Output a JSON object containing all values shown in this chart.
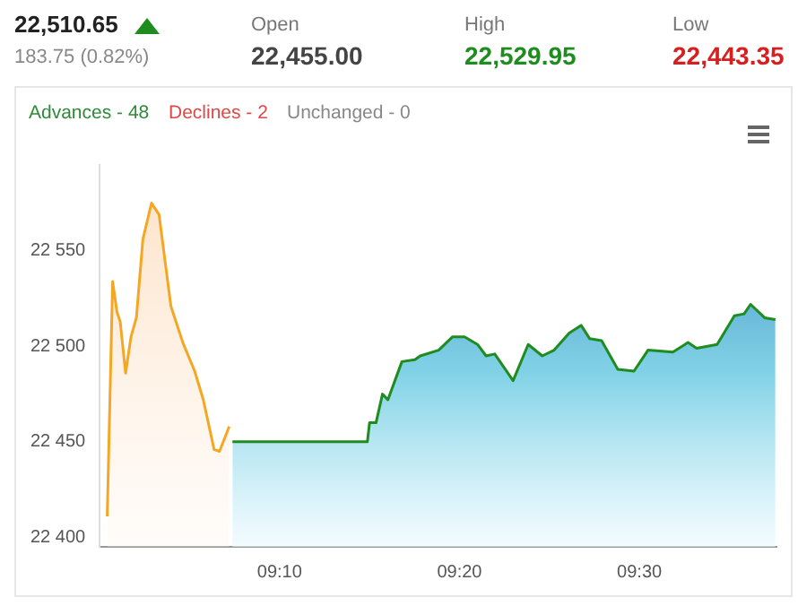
{
  "chart_data": {
    "type": "area",
    "annotations": [
      "22,510.65",
      "183.75 (0.82%)",
      "Open",
      "22,455.00",
      "High",
      "22,529.95",
      "Low",
      "22,443.35",
      "Advances - 48",
      "Declines - 2",
      "Unchanged - 0"
    ],
    "marker": "none",
    "xlim": [
      9.0,
      9.627
    ],
    "ylim": [
      22395,
      22595
    ],
    "xticks": [
      {
        "value": 9.16667,
        "label": "09:10"
      },
      {
        "value": 9.33333,
        "label": "09:20"
      },
      {
        "value": 9.5,
        "label": "09:30"
      }
    ],
    "yticks": [
      {
        "value": 22400,
        "label": "22 400"
      },
      {
        "value": 22450,
        "label": "22 450"
      },
      {
        "value": 22500,
        "label": "22 500"
      },
      {
        "value": 22550,
        "label": "22 550"
      }
    ],
    "series": [
      {
        "color": "#f5a623",
        "x": [
          9.007,
          9.012,
          9.016,
          9.019,
          9.024,
          9.029,
          9.034,
          9.04,
          9.048,
          9.055,
          9.066,
          9.077,
          9.088,
          9.096,
          9.106,
          9.111,
          9.12
        ],
        "values": [
          22411,
          22534,
          22518,
          22513,
          22486,
          22505,
          22515,
          22556,
          22575,
          22569,
          22521,
          22502,
          22487,
          22472,
          22446,
          22445,
          22458
        ]
      },
      {
        "color": "#1e8c1e",
        "x": [
          9.123,
          9.248,
          9.25,
          9.256,
          9.262,
          9.267,
          9.28,
          9.292,
          9.297,
          9.314,
          9.327,
          9.338,
          9.35,
          9.358,
          9.366,
          9.383,
          9.397,
          9.41,
          9.421,
          9.435,
          9.446,
          9.454,
          9.465,
          9.48,
          9.495,
          9.508,
          9.531,
          9.545,
          9.553,
          9.572,
          9.588,
          9.597,
          9.603,
          9.616,
          9.626
        ],
        "values": [
          22450,
          22450,
          22460,
          22460,
          22475,
          22472,
          22492,
          22493,
          22495,
          22498,
          22505,
          22505,
          22501,
          22495,
          22496,
          22482,
          22501,
          22495,
          22498,
          22507,
          22511,
          22504,
          22503,
          22488,
          22487,
          22498,
          22497,
          22502,
          22499,
          22501,
          22516,
          22517,
          22522,
          22515,
          22514
        ]
      }
    ]
  }
}
